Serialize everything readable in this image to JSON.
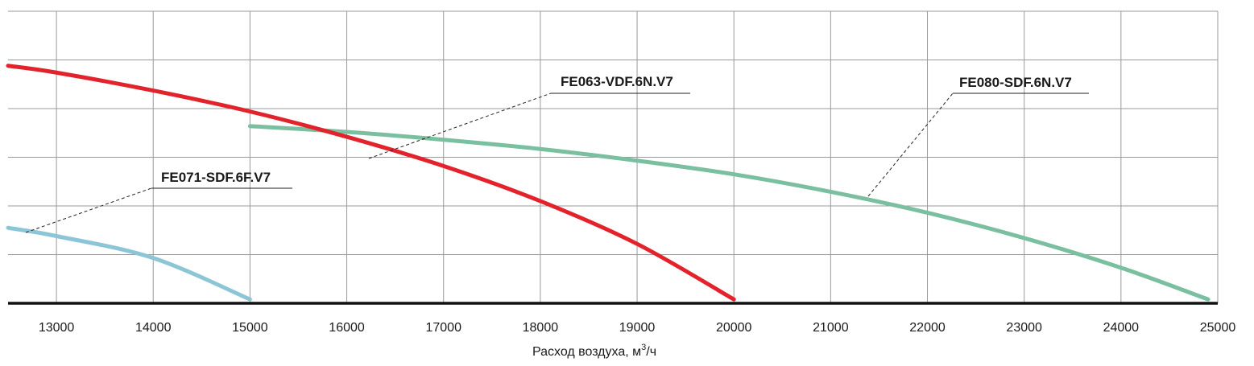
{
  "chart_data": {
    "type": "line",
    "title": "",
    "xlabel": "Расход воздуха, м",
    "xlabel_sup": "3",
    "xlabel_suffix": "/ч",
    "ylabel": "",
    "xlim": [
      12500,
      25000
    ],
    "ylim": [
      0,
      6
    ],
    "grid": true,
    "x_ticks": [
      13000,
      14000,
      15000,
      16000,
      17000,
      18000,
      19000,
      20000,
      21000,
      22000,
      23000,
      24000,
      25000
    ],
    "x_tick_labels": [
      "13000",
      "14000",
      "15000",
      "16000",
      "17000",
      "18000",
      "19000",
      "20000",
      "21000",
      "22000",
      "23000",
      "24000",
      "25000"
    ],
    "y_gridlines": [
      1,
      2,
      3,
      4,
      5,
      6
    ],
    "series": [
      {
        "name": "FE063-VDF.6N.V7",
        "color": "#e3232b",
        "x": [
          12500,
          13000,
          14000,
          15000,
          16000,
          17000,
          18000,
          19000,
          20000
        ],
        "y": [
          4.88,
          4.74,
          4.37,
          3.94,
          3.42,
          2.82,
          2.1,
          1.22,
          0.08
        ]
      },
      {
        "name": "FE080-SDF.6N.V7",
        "color": "#7abfa0",
        "x": [
          15000,
          16000,
          17000,
          18000,
          19000,
          20000,
          21000,
          22000,
          23000,
          24000,
          24900
        ],
        "y": [
          3.64,
          3.52,
          3.36,
          3.17,
          2.93,
          2.65,
          2.29,
          1.86,
          1.34,
          0.73,
          0.08
        ]
      },
      {
        "name": "FE071-SDF.6F.V7",
        "color": "#8cc6d6",
        "x": [
          12500,
          13000,
          14000,
          15000
        ],
        "y": [
          1.55,
          1.38,
          0.93,
          0.08
        ]
      }
    ]
  }
}
